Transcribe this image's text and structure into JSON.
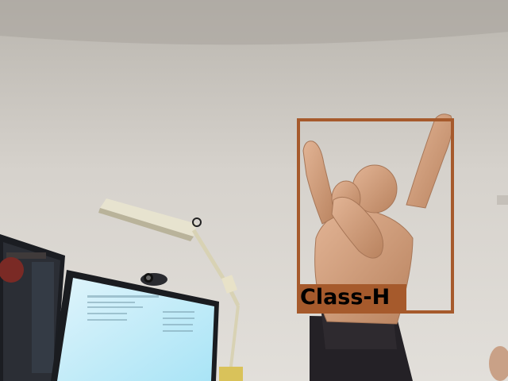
{
  "detection": {
    "label": "Class-H",
    "box_color": "#a65a2c"
  }
}
